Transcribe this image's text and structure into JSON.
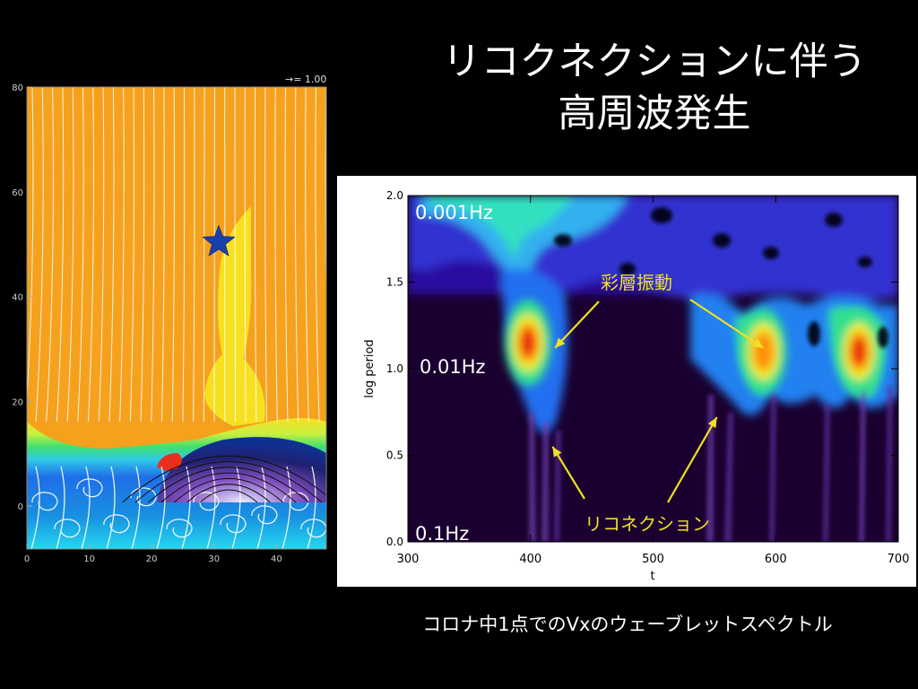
{
  "title": {
    "line1": "リコクネクションに伴う",
    "line2": "高周波発生"
  },
  "caption": "コロナ中1点でのVxのウェーブレットスペクトル",
  "simulation": {
    "vector_scale_label": "→= 1.00",
    "x_ticks": [
      "0",
      "10",
      "20",
      "30",
      "40"
    ],
    "y_ticks": [
      "0",
      "20",
      "40",
      "60",
      "80"
    ],
    "marker_icon": "star-icon",
    "colors": {
      "corona": "#f5a11e",
      "jet": "#f7e020",
      "marker": "#1a3fa8"
    }
  },
  "chart_data": {
    "type": "heatmap",
    "title": "",
    "xlabel": "t",
    "ylabel": "log period",
    "xlim": [
      300,
      700
    ],
    "ylim": [
      0.0,
      2.0
    ],
    "x_ticks": [
      "300",
      "400",
      "500",
      "600",
      "700"
    ],
    "y_ticks": [
      "0.0",
      "0.5",
      "1.0",
      "1.5",
      "2.0"
    ],
    "frequency_labels": [
      "0.001Hz",
      "0.01Hz",
      "0.1Hz"
    ],
    "annotations": [
      {
        "text": "彩層振動",
        "points_to": [
          [
            420,
            1.12
          ],
          [
            590,
            1.12
          ]
        ]
      },
      {
        "text": "リコネクション",
        "points_to": [
          [
            418,
            0.55
          ],
          [
            552,
            0.72
          ]
        ]
      }
    ],
    "power_peaks": [
      {
        "t": 398,
        "log_period": 1.15,
        "level": "high"
      },
      {
        "t": 590,
        "log_period": 1.1,
        "level": "medium"
      },
      {
        "t": 668,
        "log_period": 1.1,
        "level": "high"
      }
    ]
  }
}
